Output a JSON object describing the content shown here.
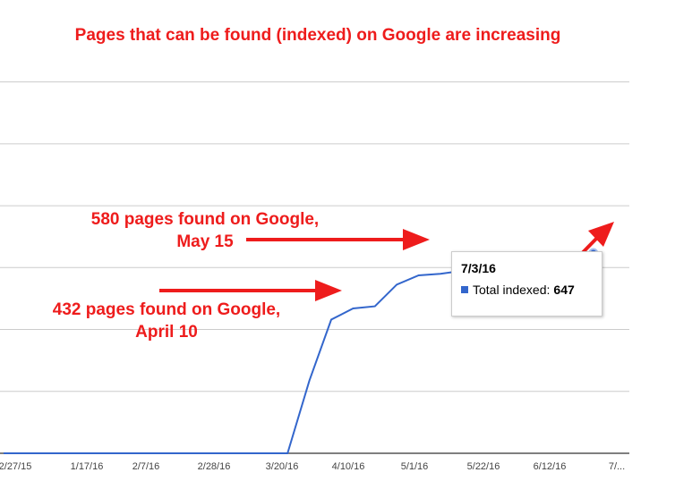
{
  "chart_data": {
    "type": "line",
    "title": "Pages that can be found (indexed) on Google are increasing",
    "x_ticks": [
      "2/27/15",
      "1/17/16",
      "2/7/16",
      "2/28/16",
      "3/20/16",
      "4/10/16",
      "5/1/16",
      "5/22/16",
      "6/12/16",
      "7/..."
    ],
    "series": [
      {
        "name": "Total indexed",
        "color": "#3366cc",
        "points": [
          [
            "12/27/15",
            0
          ],
          [
            "1/3/16",
            0
          ],
          [
            "1/10/16",
            0
          ],
          [
            "1/17/16",
            0
          ],
          [
            "1/24/16",
            0
          ],
          [
            "1/31/16",
            0
          ],
          [
            "2/7/16",
            0
          ],
          [
            "2/14/16",
            0
          ],
          [
            "2/21/16",
            0
          ],
          [
            "2/28/16",
            0
          ],
          [
            "3/6/16",
            0
          ],
          [
            "3/13/16",
            0
          ],
          [
            "3/20/16",
            0
          ],
          [
            "3/27/16",
            0
          ],
          [
            "4/3/16",
            235
          ],
          [
            "4/10/16",
            432
          ],
          [
            "4/17/16",
            468
          ],
          [
            "4/24/16",
            475
          ],
          [
            "5/1/16",
            545
          ],
          [
            "5/8/16",
            575
          ],
          [
            "5/15/16",
            580
          ],
          [
            "5/22/16",
            590
          ],
          [
            "5/29/16",
            601
          ],
          [
            "6/5/16",
            606
          ],
          [
            "6/12/16",
            608
          ],
          [
            "6/19/16",
            617
          ],
          [
            "6/26/16",
            645
          ],
          [
            "7/3/16",
            647
          ]
        ]
      }
    ],
    "ylim": [
      0,
      1300
    ],
    "grid": true,
    "annotations": {
      "may": {
        "line1": "580 pages found on Google,",
        "line2": "May 15"
      },
      "april": {
        "line1": "432 pages found on Google,",
        "line2": "April 10"
      }
    },
    "tooltip": {
      "date": "7/3/16",
      "label": "Total indexed:",
      "value": "647"
    },
    "colors": {
      "line": "#3366cc",
      "annotation": "#ee1c1c",
      "grid": "#cccccc"
    }
  }
}
